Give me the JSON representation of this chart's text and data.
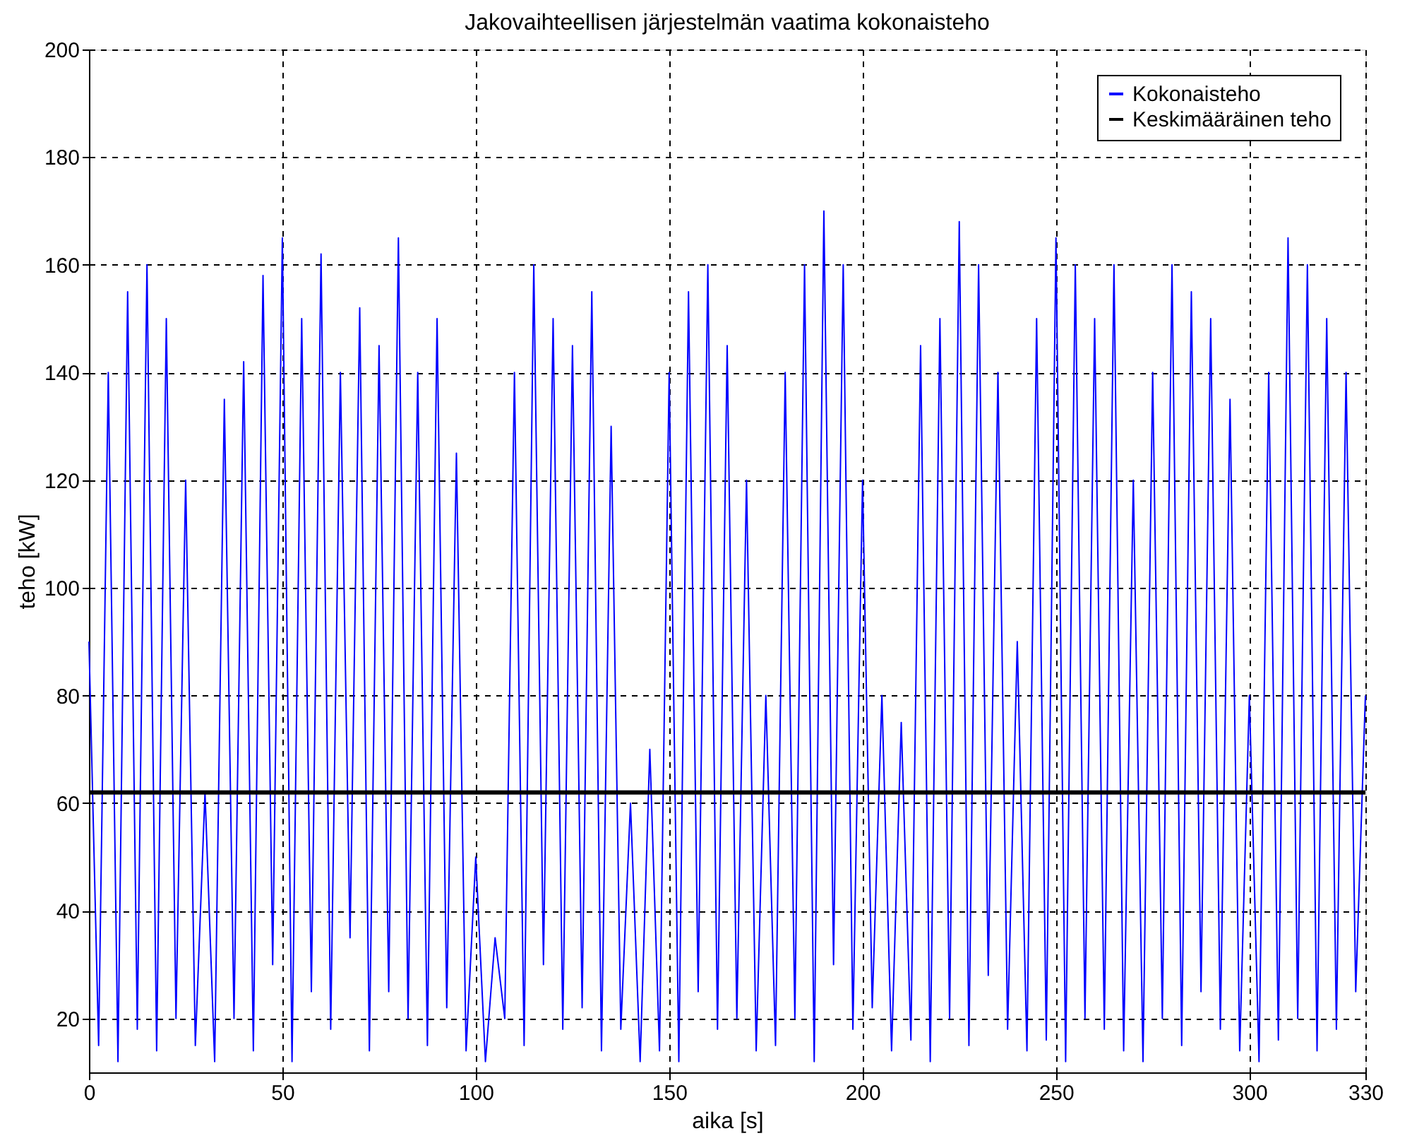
{
  "chart_data": {
    "type": "line",
    "title": "Jakovaihteellisen järjestelmän vaatima kokonaisteho",
    "xlabel": "aika [s]",
    "ylabel": "teho [kW]",
    "xlim": [
      0,
      330
    ],
    "xticks": [
      0,
      50,
      100,
      150,
      200,
      250,
      300,
      330
    ],
    "ylim": [
      10,
      200
    ],
    "yticks": [
      20,
      40,
      60,
      80,
      100,
      120,
      140,
      160,
      180,
      200
    ],
    "grid": true,
    "legend": "top right",
    "line_style": "solid",
    "marker": "none",
    "series": [
      {
        "name": "Kokonaisteho",
        "color": "#0000ff",
        "x": [
          0,
          2.5,
          5,
          7.5,
          10,
          12.5,
          15,
          17.5,
          20,
          22.5,
          25,
          27.5,
          30,
          32.5,
          35,
          37.5,
          40,
          42.5,
          45,
          47.5,
          50,
          52.5,
          55,
          57.5,
          60,
          62.5,
          65,
          67.5,
          70,
          72.5,
          75,
          77.5,
          80,
          82.5,
          85,
          87.5,
          90,
          92.5,
          95,
          97.5,
          100,
          102.5,
          105,
          107.5,
          110,
          112.5,
          115,
          117.5,
          120,
          122.5,
          125,
          127.5,
          130,
          132.5,
          135,
          137.5,
          140,
          142.5,
          145,
          147.5,
          150,
          152.5,
          155,
          157.5,
          160,
          162.5,
          165,
          167.5,
          170,
          172.5,
          175,
          177.5,
          180,
          182.5,
          185,
          187.5,
          190,
          192.5,
          195,
          197.5,
          200,
          202.5,
          205,
          207.5,
          210,
          212.5,
          215,
          217.5,
          220,
          222.5,
          225,
          227.5,
          230,
          232.5,
          235,
          237.5,
          240,
          242.5,
          245,
          247.5,
          250,
          252.5,
          255,
          257.5,
          260,
          262.5,
          265,
          267.5,
          270,
          272.5,
          275,
          277.5,
          280,
          282.5,
          285,
          287.5,
          290,
          292.5,
          295,
          297.5,
          300,
          302.5,
          305,
          307.5,
          310,
          312.5,
          315,
          317.5,
          320,
          322.5,
          325,
          327.5,
          330
        ],
        "values": [
          90,
          15,
          140,
          12,
          155,
          18,
          160,
          14,
          150,
          20,
          120,
          15,
          62,
          12,
          135,
          20,
          142,
          14,
          158,
          30,
          165,
          12,
          150,
          25,
          162,
          18,
          140,
          35,
          152,
          14,
          145,
          25,
          165,
          20,
          140,
          15,
          150,
          22,
          125,
          14,
          50,
          12,
          35,
          20,
          140,
          15,
          160,
          30,
          150,
          18,
          145,
          22,
          155,
          14,
          130,
          18,
          60,
          12,
          70,
          14,
          140,
          12,
          155,
          25,
          160,
          18,
          145,
          20,
          120,
          14,
          80,
          15,
          140,
          20,
          160,
          12,
          170,
          30,
          160,
          18,
          120,
          22,
          80,
          14,
          75,
          16,
          145,
          12,
          150,
          20,
          168,
          15,
          160,
          28,
          140,
          18,
          90,
          14,
          150,
          16,
          165,
          12,
          160,
          20,
          150,
          18,
          160,
          14,
          120,
          12,
          140,
          20,
          160,
          15,
          155,
          25,
          150,
          18,
          135,
          14,
          80,
          12,
          140,
          16,
          165,
          20,
          160,
          14,
          150,
          18,
          140,
          25,
          80
        ]
      },
      {
        "name": "Keskimääräinen teho",
        "color": "#000000",
        "x": [
          0,
          330
        ],
        "values": [
          62,
          62
        ]
      }
    ]
  }
}
